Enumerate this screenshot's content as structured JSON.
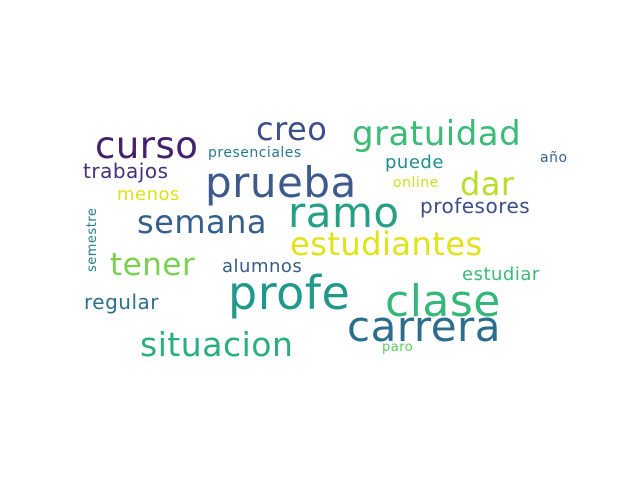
{
  "words": [
    {
      "key": "carrera",
      "text": "carrera",
      "color": "#2c6d8e"
    },
    {
      "key": "profe",
      "text": "profe",
      "color": "#1f9a8a"
    },
    {
      "key": "clase",
      "text": "clase",
      "color": "#35b779"
    },
    {
      "key": "prueba",
      "text": "prueba",
      "color": "#3e5a8c"
    },
    {
      "key": "ramo",
      "text": "ramo",
      "color": "#26a085"
    },
    {
      "key": "curso",
      "text": "curso",
      "color": "#45216b"
    },
    {
      "key": "gratuidad",
      "text": "gratuidad",
      "color": "#3bbb75"
    },
    {
      "key": "creo",
      "text": "creo",
      "color": "#3c4f8a"
    },
    {
      "key": "estudiantes",
      "text": "estudiantes",
      "color": "#dfe318"
    },
    {
      "key": "semana",
      "text": "semana",
      "color": "#355f8d"
    },
    {
      "key": "situacion",
      "text": "situacion",
      "color": "#29af7f"
    },
    {
      "key": "tener",
      "text": "tener",
      "color": "#7ad151"
    },
    {
      "key": "dar",
      "text": "dar",
      "color": "#b8de29"
    },
    {
      "key": "profesores",
      "text": "profesores",
      "color": "#3d4d8a"
    },
    {
      "key": "trabajos",
      "text": "trabajos",
      "color": "#46307e"
    },
    {
      "key": "regular",
      "text": "regular",
      "color": "#2d708e"
    },
    {
      "key": "alumnos",
      "text": "alumnos",
      "color": "#365c8d"
    },
    {
      "key": "estudiar",
      "text": "estudiar",
      "color": "#3aba76"
    },
    {
      "key": "puede",
      "text": "puede",
      "color": "#228c8d"
    },
    {
      "key": "menos",
      "text": "menos",
      "color": "#dde318"
    },
    {
      "key": "presenciales",
      "text": "presenciales",
      "color": "#2a788e"
    },
    {
      "key": "año",
      "text": "año",
      "color": "#33638d"
    },
    {
      "key": "online",
      "text": "online",
      "color": "#c8e020"
    },
    {
      "key": "semestre",
      "text": "semestre",
      "color": "#2a7b8e"
    },
    {
      "key": "paro",
      "text": "paro",
      "color": "#5ec962"
    }
  ]
}
